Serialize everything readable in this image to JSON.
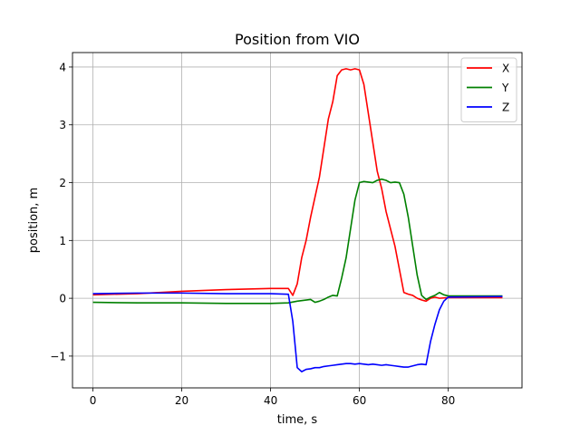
{
  "chart_data": {
    "type": "line",
    "title": "Position from VIO",
    "xlabel": "time, s",
    "ylabel": "position, m",
    "xlim": [
      -4.6,
      96.6
    ],
    "ylim": [
      -1.55,
      4.25
    ],
    "xticks": [
      0,
      20,
      40,
      60,
      80
    ],
    "xtick_labels": [
      "0",
      "20",
      "40",
      "60",
      "80"
    ],
    "yticks": [
      -1,
      0,
      1,
      2,
      3,
      4
    ],
    "ytick_labels": [
      "−1",
      "0",
      "1",
      "2",
      "3",
      "4"
    ],
    "grid": true,
    "legend_position": "top-right",
    "series": [
      {
        "name": "X",
        "color": "#ff0000",
        "points": [
          [
            0,
            0.06
          ],
          [
            10,
            0.08
          ],
          [
            20,
            0.12
          ],
          [
            30,
            0.15
          ],
          [
            40,
            0.17
          ],
          [
            44,
            0.17
          ],
          [
            45,
            0.05
          ],
          [
            46,
            0.25
          ],
          [
            47,
            0.7
          ],
          [
            48,
            1.0
          ],
          [
            49,
            1.4
          ],
          [
            50,
            1.75
          ],
          [
            51,
            2.1
          ],
          [
            52,
            2.6
          ],
          [
            53,
            3.1
          ],
          [
            54,
            3.4
          ],
          [
            55,
            3.85
          ],
          [
            56,
            3.95
          ],
          [
            57,
            3.97
          ],
          [
            58,
            3.95
          ],
          [
            59,
            3.97
          ],
          [
            60,
            3.95
          ],
          [
            61,
            3.7
          ],
          [
            62,
            3.2
          ],
          [
            63,
            2.7
          ],
          [
            64,
            2.2
          ],
          [
            65,
            1.9
          ],
          [
            66,
            1.5
          ],
          [
            67,
            1.2
          ],
          [
            68,
            0.9
          ],
          [
            69,
            0.5
          ],
          [
            70,
            0.1
          ],
          [
            71,
            0.07
          ],
          [
            72,
            0.05
          ],
          [
            73,
            0.0
          ],
          [
            74,
            -0.03
          ],
          [
            75,
            -0.05
          ],
          [
            76,
            0.0
          ],
          [
            77,
            0.02
          ],
          [
            78,
            0.0
          ],
          [
            80,
            0.01
          ],
          [
            92.2,
            0.01
          ]
        ]
      },
      {
        "name": "Y",
        "color": "#008000",
        "points": [
          [
            0,
            -0.07
          ],
          [
            10,
            -0.08
          ],
          [
            20,
            -0.08
          ],
          [
            30,
            -0.09
          ],
          [
            40,
            -0.09
          ],
          [
            44,
            -0.08
          ],
          [
            46,
            -0.05
          ],
          [
            48,
            -0.03
          ],
          [
            49,
            -0.02
          ],
          [
            50,
            -0.07
          ],
          [
            51,
            -0.05
          ],
          [
            52,
            -0.02
          ],
          [
            53,
            0.02
          ],
          [
            54,
            0.05
          ],
          [
            55,
            0.04
          ],
          [
            56,
            0.35
          ],
          [
            57,
            0.7
          ],
          [
            58,
            1.2
          ],
          [
            59,
            1.7
          ],
          [
            60,
            2.0
          ],
          [
            61,
            2.02
          ],
          [
            62,
            2.01
          ],
          [
            63,
            2.0
          ],
          [
            64,
            2.04
          ],
          [
            65,
            2.06
          ],
          [
            66,
            2.04
          ],
          [
            67,
            2.0
          ],
          [
            68,
            2.01
          ],
          [
            69,
            2.0
          ],
          [
            70,
            1.8
          ],
          [
            71,
            1.4
          ],
          [
            72,
            0.9
          ],
          [
            73,
            0.4
          ],
          [
            74,
            0.05
          ],
          [
            75,
            -0.02
          ],
          [
            76,
            0.02
          ],
          [
            77,
            0.05
          ],
          [
            78,
            0.1
          ],
          [
            79,
            0.06
          ],
          [
            80,
            0.04
          ],
          [
            92.2,
            0.04
          ]
        ]
      },
      {
        "name": "Z",
        "color": "#0000ff",
        "points": [
          [
            0,
            0.08
          ],
          [
            10,
            0.09
          ],
          [
            20,
            0.09
          ],
          [
            30,
            0.08
          ],
          [
            40,
            0.08
          ],
          [
            44,
            0.07
          ],
          [
            45,
            -0.4
          ],
          [
            46,
            -1.2
          ],
          [
            47,
            -1.27
          ],
          [
            48,
            -1.23
          ],
          [
            49,
            -1.22
          ],
          [
            50,
            -1.2
          ],
          [
            51,
            -1.2
          ],
          [
            52,
            -1.18
          ],
          [
            53,
            -1.17
          ],
          [
            54,
            -1.16
          ],
          [
            55,
            -1.15
          ],
          [
            56,
            -1.14
          ],
          [
            57,
            -1.13
          ],
          [
            58,
            -1.13
          ],
          [
            59,
            -1.14
          ],
          [
            60,
            -1.13
          ],
          [
            61,
            -1.14
          ],
          [
            62,
            -1.15
          ],
          [
            63,
            -1.14
          ],
          [
            64,
            -1.15
          ],
          [
            65,
            -1.16
          ],
          [
            66,
            -1.15
          ],
          [
            67,
            -1.16
          ],
          [
            68,
            -1.17
          ],
          [
            69,
            -1.18
          ],
          [
            70,
            -1.19
          ],
          [
            71,
            -1.19
          ],
          [
            72,
            -1.17
          ],
          [
            73,
            -1.15
          ],
          [
            74,
            -1.14
          ],
          [
            75,
            -1.15
          ],
          [
            76,
            -0.75
          ],
          [
            77,
            -0.45
          ],
          [
            78,
            -0.2
          ],
          [
            79,
            -0.05
          ],
          [
            80,
            0.02
          ],
          [
            92.2,
            0.03
          ]
        ]
      }
    ]
  }
}
